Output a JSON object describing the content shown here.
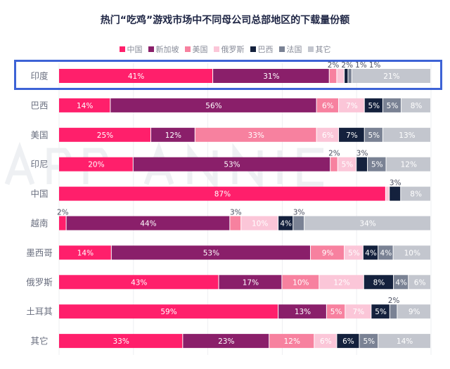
{
  "chart_data": {
    "type": "bar",
    "orientation": "horizontal",
    "stacked": "percent",
    "title": "热门“吃鸡”游戏市场中不同母公司总部地区的下载量份额",
    "legend_position": "top",
    "grid": true,
    "highlighted_category": "印度",
    "watermark": "APP ANNIE",
    "categories": [
      "印度",
      "巴西",
      "美国",
      "印尼",
      "中国",
      "越南",
      "墨西哥",
      "俄罗斯",
      "土耳其",
      "其它"
    ],
    "series": [
      {
        "name": "中国",
        "color": "#ff1f6b",
        "values": [
          41,
          14,
          25,
          20,
          87,
          2,
          14,
          43,
          59,
          33
        ],
        "labels": [
          "41%",
          "14%",
          "25%",
          "20%",
          "87%",
          "2%",
          "14%",
          "43%",
          "59%",
          "33%"
        ]
      },
      {
        "name": "新加坡",
        "color": "#8a1f6a",
        "values": [
          31,
          56,
          12,
          53,
          0,
          44,
          53,
          17,
          13,
          23
        ],
        "labels": [
          "31%",
          "56%",
          "12%",
          "53%",
          "",
          "44%",
          "53%",
          "17%",
          "13%",
          "23%"
        ]
      },
      {
        "name": "美国",
        "color": "#f7819f",
        "values": [
          2,
          6,
          33,
          2,
          0,
          3,
          9,
          10,
          5,
          12
        ],
        "labels": [
          "2%",
          "6%",
          "33%",
          "2%",
          "",
          "3%",
          "9%",
          "10%",
          "5%",
          "12%"
        ]
      },
      {
        "name": "俄罗斯",
        "color": "#fbc6d8",
        "values": [
          2,
          7,
          6,
          5,
          1,
          10,
          5,
          12,
          7,
          6
        ],
        "labels": [
          "2%",
          "7%",
          "6%",
          "5%",
          "",
          "10%",
          "5%",
          "12%",
          "7%",
          "6%"
        ]
      },
      {
        "name": "巴西",
        "color": "#14213d",
        "values": [
          1,
          5,
          7,
          3,
          3,
          4,
          4,
          8,
          5,
          6
        ],
        "labels": [
          "1%",
          "5%",
          "7%",
          "3%",
          "3%",
          "4%",
          "4%",
          "8%",
          "5%",
          "6%"
        ]
      },
      {
        "name": "法国",
        "color": "#7a8294",
        "values": [
          1,
          5,
          5,
          5,
          0,
          3,
          4,
          4,
          2,
          5
        ],
        "labels": [
          "1%",
          "5%",
          "5%",
          "5%",
          "",
          "3%",
          "4%",
          "4%",
          "2%",
          "5%"
        ]
      },
      {
        "name": "其它",
        "color": "#c3c6ce",
        "values": [
          21,
          8,
          13,
          12,
          8,
          34,
          10,
          6,
          9,
          14
        ],
        "labels": [
          "21%",
          "8%",
          "13%",
          "12%",
          "8%",
          "34%",
          "10%",
          "6%",
          "9%",
          "14%"
        ]
      }
    ]
  }
}
